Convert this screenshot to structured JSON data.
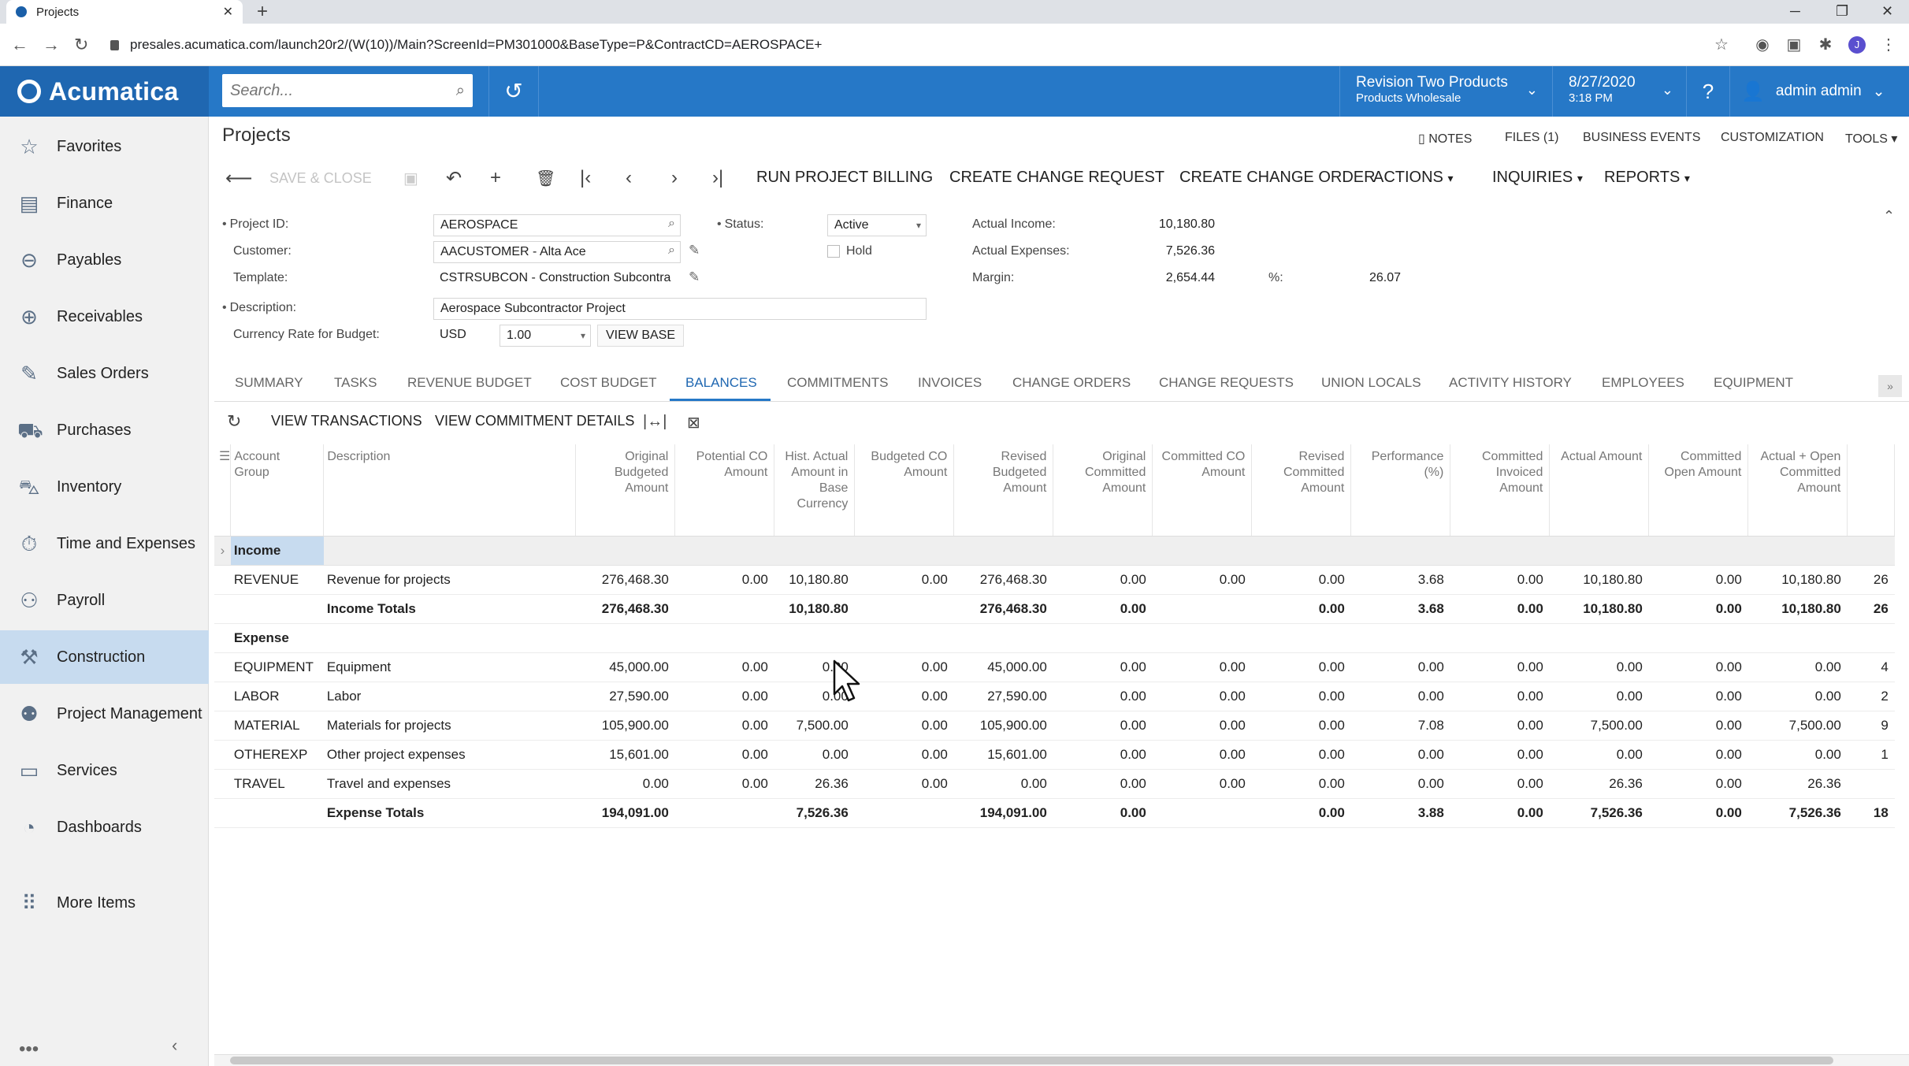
{
  "browser": {
    "tab_title": "Projects",
    "url": "presales.acumatica.com/launch20r2/(W(10))/Main?ScreenId=PM301000&BaseType=P&ContractCD=AEROSPACE+",
    "profile_initial": "J"
  },
  "topbar": {
    "logo": "Acumatica",
    "search_placeholder": "Search...",
    "branch_line1": "Revision Two Products",
    "branch_line2": "Products Wholesale",
    "date": "8/27/2020",
    "time": "3:18 PM",
    "user": "admin admin"
  },
  "sidebar": {
    "items": [
      {
        "label": "Favorites",
        "icon": "star-icon"
      },
      {
        "label": "Finance",
        "icon": "finance-icon"
      },
      {
        "label": "Payables",
        "icon": "payables-icon"
      },
      {
        "label": "Receivables",
        "icon": "receivables-icon"
      },
      {
        "label": "Sales Orders",
        "icon": "sales-orders-icon"
      },
      {
        "label": "Purchases",
        "icon": "cart-icon"
      },
      {
        "label": "Inventory",
        "icon": "truck-icon"
      },
      {
        "label": "Time and Expenses",
        "icon": "stopwatch-icon"
      },
      {
        "label": "Payroll",
        "icon": "payroll-icon"
      },
      {
        "label": "Construction",
        "icon": "construction-icon"
      },
      {
        "label": "Project Management",
        "icon": "project-management-icon"
      },
      {
        "label": "Services",
        "icon": "services-icon"
      },
      {
        "label": "Dashboards",
        "icon": "dashboard-icon"
      },
      {
        "label": "More Items",
        "icon": "grid-dots-icon"
      }
    ]
  },
  "page": {
    "title": "Projects",
    "links": [
      "NOTES",
      "FILES (1)",
      "BUSINESS EVENTS",
      "CUSTOMIZATION",
      "TOOLS"
    ],
    "toolbar": {
      "save_close": "SAVE & CLOSE",
      "run_billing": "RUN PROJECT BILLING",
      "create_change_request": "CREATE CHANGE REQUEST",
      "create_change_order": "CREATE CHANGE ORDER",
      "actions": "ACTIONS",
      "inquiries": "INQUIRIES",
      "reports": "REPORTS"
    }
  },
  "form": {
    "project_id_label": "Project ID:",
    "project_id": "AEROSPACE",
    "customer_label": "Customer:",
    "customer": "AACUSTOMER - Alta Ace",
    "template_label": "Template:",
    "template": "CSTRSUBCON - Construction Subcontra",
    "description_label": "Description:",
    "description": "Aerospace Subcontractor Project",
    "currency_label": "Currency Rate for Budget:",
    "currency": "USD",
    "rate": "1.00",
    "view_base": "VIEW BASE",
    "status_label": "Status:",
    "status": "Active",
    "hold_label": "Hold",
    "actual_income_label": "Actual Income:",
    "actual_income": "10,180.80",
    "actual_expenses_label": "Actual Expenses:",
    "actual_expenses": "7,526.36",
    "margin_label": "Margin:",
    "margin": "2,654.44",
    "pct_label": "%:",
    "pct": "26.07"
  },
  "tabs": [
    "SUMMARY",
    "TASKS",
    "REVENUE BUDGET",
    "COST BUDGET",
    "BALANCES",
    "COMMITMENTS",
    "INVOICES",
    "CHANGE ORDERS",
    "CHANGE REQUESTS",
    "UNION LOCALS",
    "ACTIVITY HISTORY",
    "EMPLOYEES",
    "EQUIPMENT"
  ],
  "grid_toolbar": {
    "view_transactions": "VIEW TRANSACTIONS",
    "view_commitment_details": "VIEW COMMITMENT DETAILS"
  },
  "grid": {
    "headers": [
      "Account Group",
      "Description",
      "Original Budgeted Amount",
      "Potential CO Amount",
      "Hist. Actual Amount in Base Currency",
      "Budgeted CO Amount",
      "Revised Budgeted Amount",
      "Original Committed Amount",
      "Committed CO Amount",
      "Revised Committed Amount",
      "Performance (%)",
      "Committed Invoiced Amount",
      "Actual Amount",
      "Committed Open Amount",
      "Actual + Open Committed Amount",
      ""
    ],
    "income_group": "Income",
    "expense_group": "Expense",
    "income_rows": [
      [
        "REVENUE",
        "Revenue for projects",
        "276,468.30",
        "0.00",
        "10,180.80",
        "0.00",
        "276,468.30",
        "0.00",
        "0.00",
        "0.00",
        "3.68",
        "0.00",
        "10,180.80",
        "0.00",
        "10,180.80",
        "26"
      ]
    ],
    "income_total": [
      "",
      "Income Totals",
      "276,468.30",
      "",
      "10,180.80",
      "",
      "276,468.30",
      "0.00",
      "",
      "0.00",
      "3.68",
      "0.00",
      "10,180.80",
      "0.00",
      "10,180.80",
      "26"
    ],
    "expense_rows": [
      [
        "EQUIPMENT",
        "Equipment",
        "45,000.00",
        "0.00",
        "0.00",
        "0.00",
        "45,000.00",
        "0.00",
        "0.00",
        "0.00",
        "0.00",
        "0.00",
        "0.00",
        "0.00",
        "0.00",
        "4"
      ],
      [
        "LABOR",
        "Labor",
        "27,590.00",
        "0.00",
        "0.00",
        "0.00",
        "27,590.00",
        "0.00",
        "0.00",
        "0.00",
        "0.00",
        "0.00",
        "0.00",
        "0.00",
        "0.00",
        "2"
      ],
      [
        "MATERIAL",
        "Materials for projects",
        "105,900.00",
        "0.00",
        "7,500.00",
        "0.00",
        "105,900.00",
        "0.00",
        "0.00",
        "0.00",
        "7.08",
        "0.00",
        "7,500.00",
        "0.00",
        "7,500.00",
        "9"
      ],
      [
        "OTHEREXP",
        "Other project expenses",
        "15,601.00",
        "0.00",
        "0.00",
        "0.00",
        "15,601.00",
        "0.00",
        "0.00",
        "0.00",
        "0.00",
        "0.00",
        "0.00",
        "0.00",
        "0.00",
        "1"
      ],
      [
        "TRAVEL",
        "Travel and expenses",
        "0.00",
        "0.00",
        "26.36",
        "0.00",
        "0.00",
        "0.00",
        "0.00",
        "0.00",
        "0.00",
        "0.00",
        "26.36",
        "0.00",
        "26.36",
        ""
      ]
    ],
    "expense_total": [
      "",
      "Expense Totals",
      "194,091.00",
      "",
      "7,526.36",
      "",
      "194,091.00",
      "0.00",
      "",
      "0.00",
      "3.88",
      "0.00",
      "7,526.36",
      "0.00",
      "7,526.36",
      "18"
    ]
  }
}
